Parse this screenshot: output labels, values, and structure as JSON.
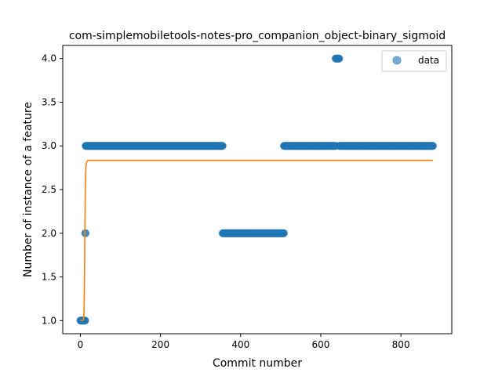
{
  "chart_data": {
    "type": "scatter",
    "title": "com-simplemobiletools-notes-pro_companion_object-binary_sigmoid",
    "xlabel": "Commit number",
    "ylabel": "Number of instance of a feature",
    "xlim": [
      -44,
      927
    ],
    "ylim": [
      0.85,
      4.15
    ],
    "xticks": [
      0,
      200,
      400,
      600,
      800
    ],
    "yticks": [
      1.0,
      1.5,
      2.0,
      2.5,
      3.0,
      3.5,
      4.0
    ],
    "grid": false,
    "legend": {
      "position": "top-right",
      "entries": [
        "data"
      ]
    },
    "colors": {
      "data": "#1f77b4",
      "fit": "#ff7f0e"
    },
    "series": [
      {
        "name": "data",
        "kind": "scatter",
        "segments": [
          {
            "x_start": 0,
            "x_end": 12,
            "y": 1
          },
          {
            "x_start": 12,
            "x_end": 13,
            "y": 2
          },
          {
            "x_start": 13,
            "x_end": 355,
            "y": 3
          },
          {
            "x_start": 355,
            "x_end": 508,
            "y": 2
          },
          {
            "x_start": 508,
            "x_end": 637,
            "y": 3
          },
          {
            "x_start": 637,
            "x_end": 646,
            "y": 4
          },
          {
            "x_start": 646,
            "x_end": 880,
            "y": 3
          }
        ]
      },
      {
        "kind": "line",
        "x": [
          0,
          4,
          6,
          8,
          9,
          10,
          11,
          12,
          13,
          14,
          15,
          16,
          18,
          20,
          25,
          880
        ],
        "y": [
          1.0,
          1.0,
          1.0,
          1.02,
          1.1,
          1.35,
          1.9,
          2.4,
          2.65,
          2.76,
          2.8,
          2.82,
          2.83,
          2.835,
          2.835,
          2.835
        ]
      }
    ]
  }
}
